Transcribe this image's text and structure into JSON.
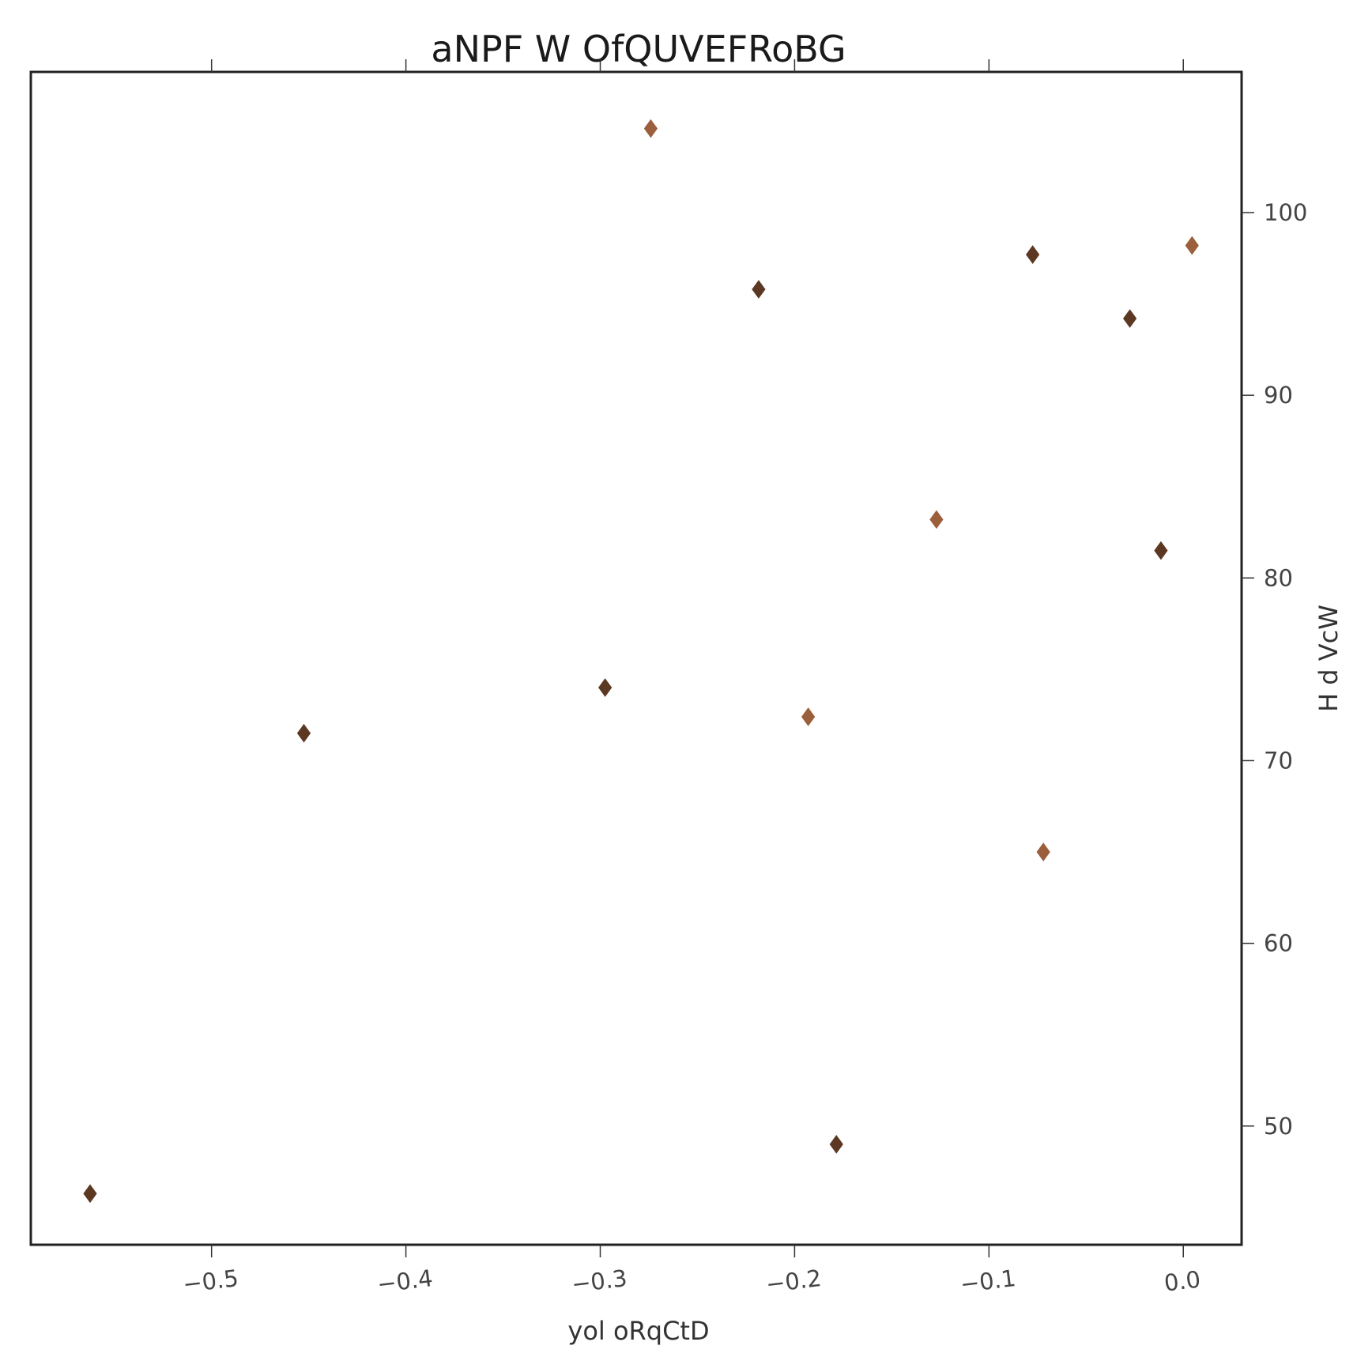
{
  "chart_data": {
    "type": "scatter",
    "title": "aNPF W OfQUVEFRoBG",
    "xlabel": "yol oRqCtD",
    "ylabel": "H d VcW",
    "xlim": [
      -0.593,
      0.03
    ],
    "ylim": [
      43.5,
      107.7
    ],
    "x_ticks": [
      -0.5,
      -0.4,
      -0.3,
      -0.2,
      -0.1,
      0.0
    ],
    "x_tick_labels": [
      "−0.5",
      "−0.4",
      "−0.3",
      "−0.2",
      "−0.1",
      "0.0"
    ],
    "y_ticks": [
      50,
      60,
      70,
      80,
      90,
      100
    ],
    "y_tick_labels": [
      "50",
      "60",
      "70",
      "80",
      "90",
      "100"
    ],
    "y_axis_side": "right",
    "grid": false,
    "marker": "diamond",
    "series": [
      {
        "color": "#5c3823",
        "points": [
          {
            "x": -0.5625,
            "y": 46.3
          },
          {
            "x": -0.4525,
            "y": 71.5
          },
          {
            "x": -0.2975,
            "y": 74.0
          },
          {
            "x": -0.2185,
            "y": 95.8
          },
          {
            "x": -0.1785,
            "y": 49.0
          },
          {
            "x": -0.0775,
            "y": 97.7
          },
          {
            "x": -0.0275,
            "y": 94.2
          },
          {
            "x": -0.0115,
            "y": 81.5
          }
        ]
      },
      {
        "color": "#9c5f3c",
        "points": [
          {
            "x": -0.274,
            "y": 104.6
          },
          {
            "x": -0.193,
            "y": 72.4
          },
          {
            "x": -0.127,
            "y": 83.2
          },
          {
            "x": -0.072,
            "y": 65.0
          },
          {
            "x": 0.0045,
            "y": 98.2
          }
        ]
      }
    ]
  }
}
